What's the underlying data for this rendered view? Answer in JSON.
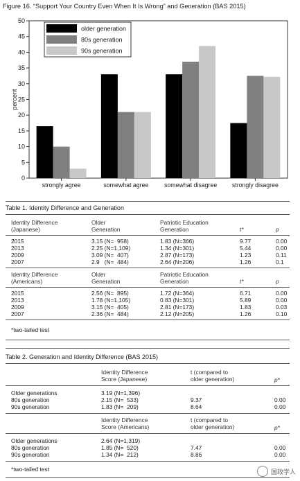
{
  "figure": {
    "caption": "Figure 16.  “Support Your Country Even When It Is Wrong” and Generation (BAS 2015)"
  },
  "chart_data": {
    "type": "bar",
    "categories": [
      "strongly agree",
      "somewhat agree",
      "somewhat disagree",
      "strongly disagree"
    ],
    "series": [
      {
        "name": "older generation",
        "color": "#000000",
        "values": [
          16.5,
          33,
          33,
          17.5
        ]
      },
      {
        "name": "80s generation",
        "color": "#808080",
        "values": [
          10,
          21,
          37,
          32.5
        ]
      },
      {
        "name": "90s generation",
        "color": "#c8c8c8",
        "values": [
          3,
          21,
          42,
          32.2
        ]
      }
    ],
    "ylabel": "percent",
    "ylim": [
      0,
      50
    ],
    "yticks": [
      0,
      5,
      10,
      15,
      20,
      25,
      30,
      35,
      40,
      45,
      50
    ],
    "legend_position": "top-left"
  },
  "table1": {
    "title": "Table 1. Identity Difference and Generation",
    "blocks": [
      {
        "col1_head": [
          "Identity Difference",
          "(Japanese)"
        ],
        "col2_head": [
          "Older",
          "Generation"
        ],
        "col3_head": [
          "Patriotic Education",
          "Generation"
        ],
        "t_head": "t*",
        "p_head": "p",
        "rows": [
          {
            "year": "2015",
            "older": "3.15 (N=  958)",
            "patriotic": "1.83 (N=366)",
            "t": "9.77",
            "p": "0.00"
          },
          {
            "year": "2013",
            "older": "2.25 (N=1,109)",
            "patriotic": "1.34 (N=301)",
            "t": "5.44",
            "p": "0.00"
          },
          {
            "year": "2009",
            "older": "3.09 (N=  407)",
            "patriotic": "2.87 (N=173)",
            "t": "1.23",
            "p": "0.11"
          },
          {
            "year": "2007",
            "older": "2.9   (N=  484)",
            "patriotic": "2.64 (N=206)",
            "t": "1.26",
            "p": "0.1"
          }
        ]
      },
      {
        "col1_head": [
          "Identity Difference",
          "(Americans)"
        ],
        "col2_head": [
          "Older",
          "Generation"
        ],
        "col3_head": [
          "Patriotic Education",
          "Generation"
        ],
        "t_head": "t*",
        "p_head": "p",
        "rows": [
          {
            "year": "2015",
            "older": "2.56 (N=  895)",
            "patriotic": "1.72 (N=364)",
            "t": "6.71",
            "p": "0.00"
          },
          {
            "year": "2013",
            "older": "1.78 (N=1,105)",
            "patriotic": "0.83 (N=301)",
            "t": "5.89",
            "p": "0.00"
          },
          {
            "year": "2009",
            "older": "3.15 (N=  405)",
            "patriotic": "2.81 (N=173)",
            "t": "1.83",
            "p": "0.03"
          },
          {
            "year": "2007",
            "older": "2.36 (N=  484)",
            "patriotic": "2.12 (N=205)",
            "t": "1.26",
            "p": "0.10"
          }
        ]
      }
    ],
    "note": "*two-tailed test"
  },
  "table2": {
    "title": "Table 2. Generation and Identity Difference (BAS 2015)",
    "blocks": [
      {
        "col2_head": [
          "Identity Difference",
          "Score (Japanese)"
        ],
        "col3_head": [
          "t (compared to",
          "older generation)"
        ],
        "p_head": "p*",
        "rows": [
          {
            "label": "Older generations",
            "score": "3.19 (N=1,396)",
            "t": "",
            "p": ""
          },
          {
            "label": "80s generation",
            "score": "2.15 (N=  533)",
            "t": "9.37",
            "p": "0.00"
          },
          {
            "label": "90s generation",
            "score": "1.83 (N=  209)",
            "t": "8.64",
            "p": "0.00"
          }
        ]
      },
      {
        "col2_head": [
          "Identity Difference",
          "Score (Americans)"
        ],
        "col3_head": [
          "t (compared to",
          "older generation)"
        ],
        "p_head": "p*",
        "rows": [
          {
            "label": "Older generations",
            "score": "2.64 (N=1,319)",
            "t": "",
            "p": ""
          },
          {
            "label": "80s generation",
            "score": "1.85 (N=  520)",
            "t": "7.47",
            "p": "0.00"
          },
          {
            "label": "90s generation",
            "score": "1.34 (N=  212)",
            "t": "8.86",
            "p": "0.00"
          }
        ]
      }
    ],
    "note": "*two-tailed test"
  },
  "watermark": {
    "text": "国政学人",
    "icon": "wechat-icon"
  }
}
